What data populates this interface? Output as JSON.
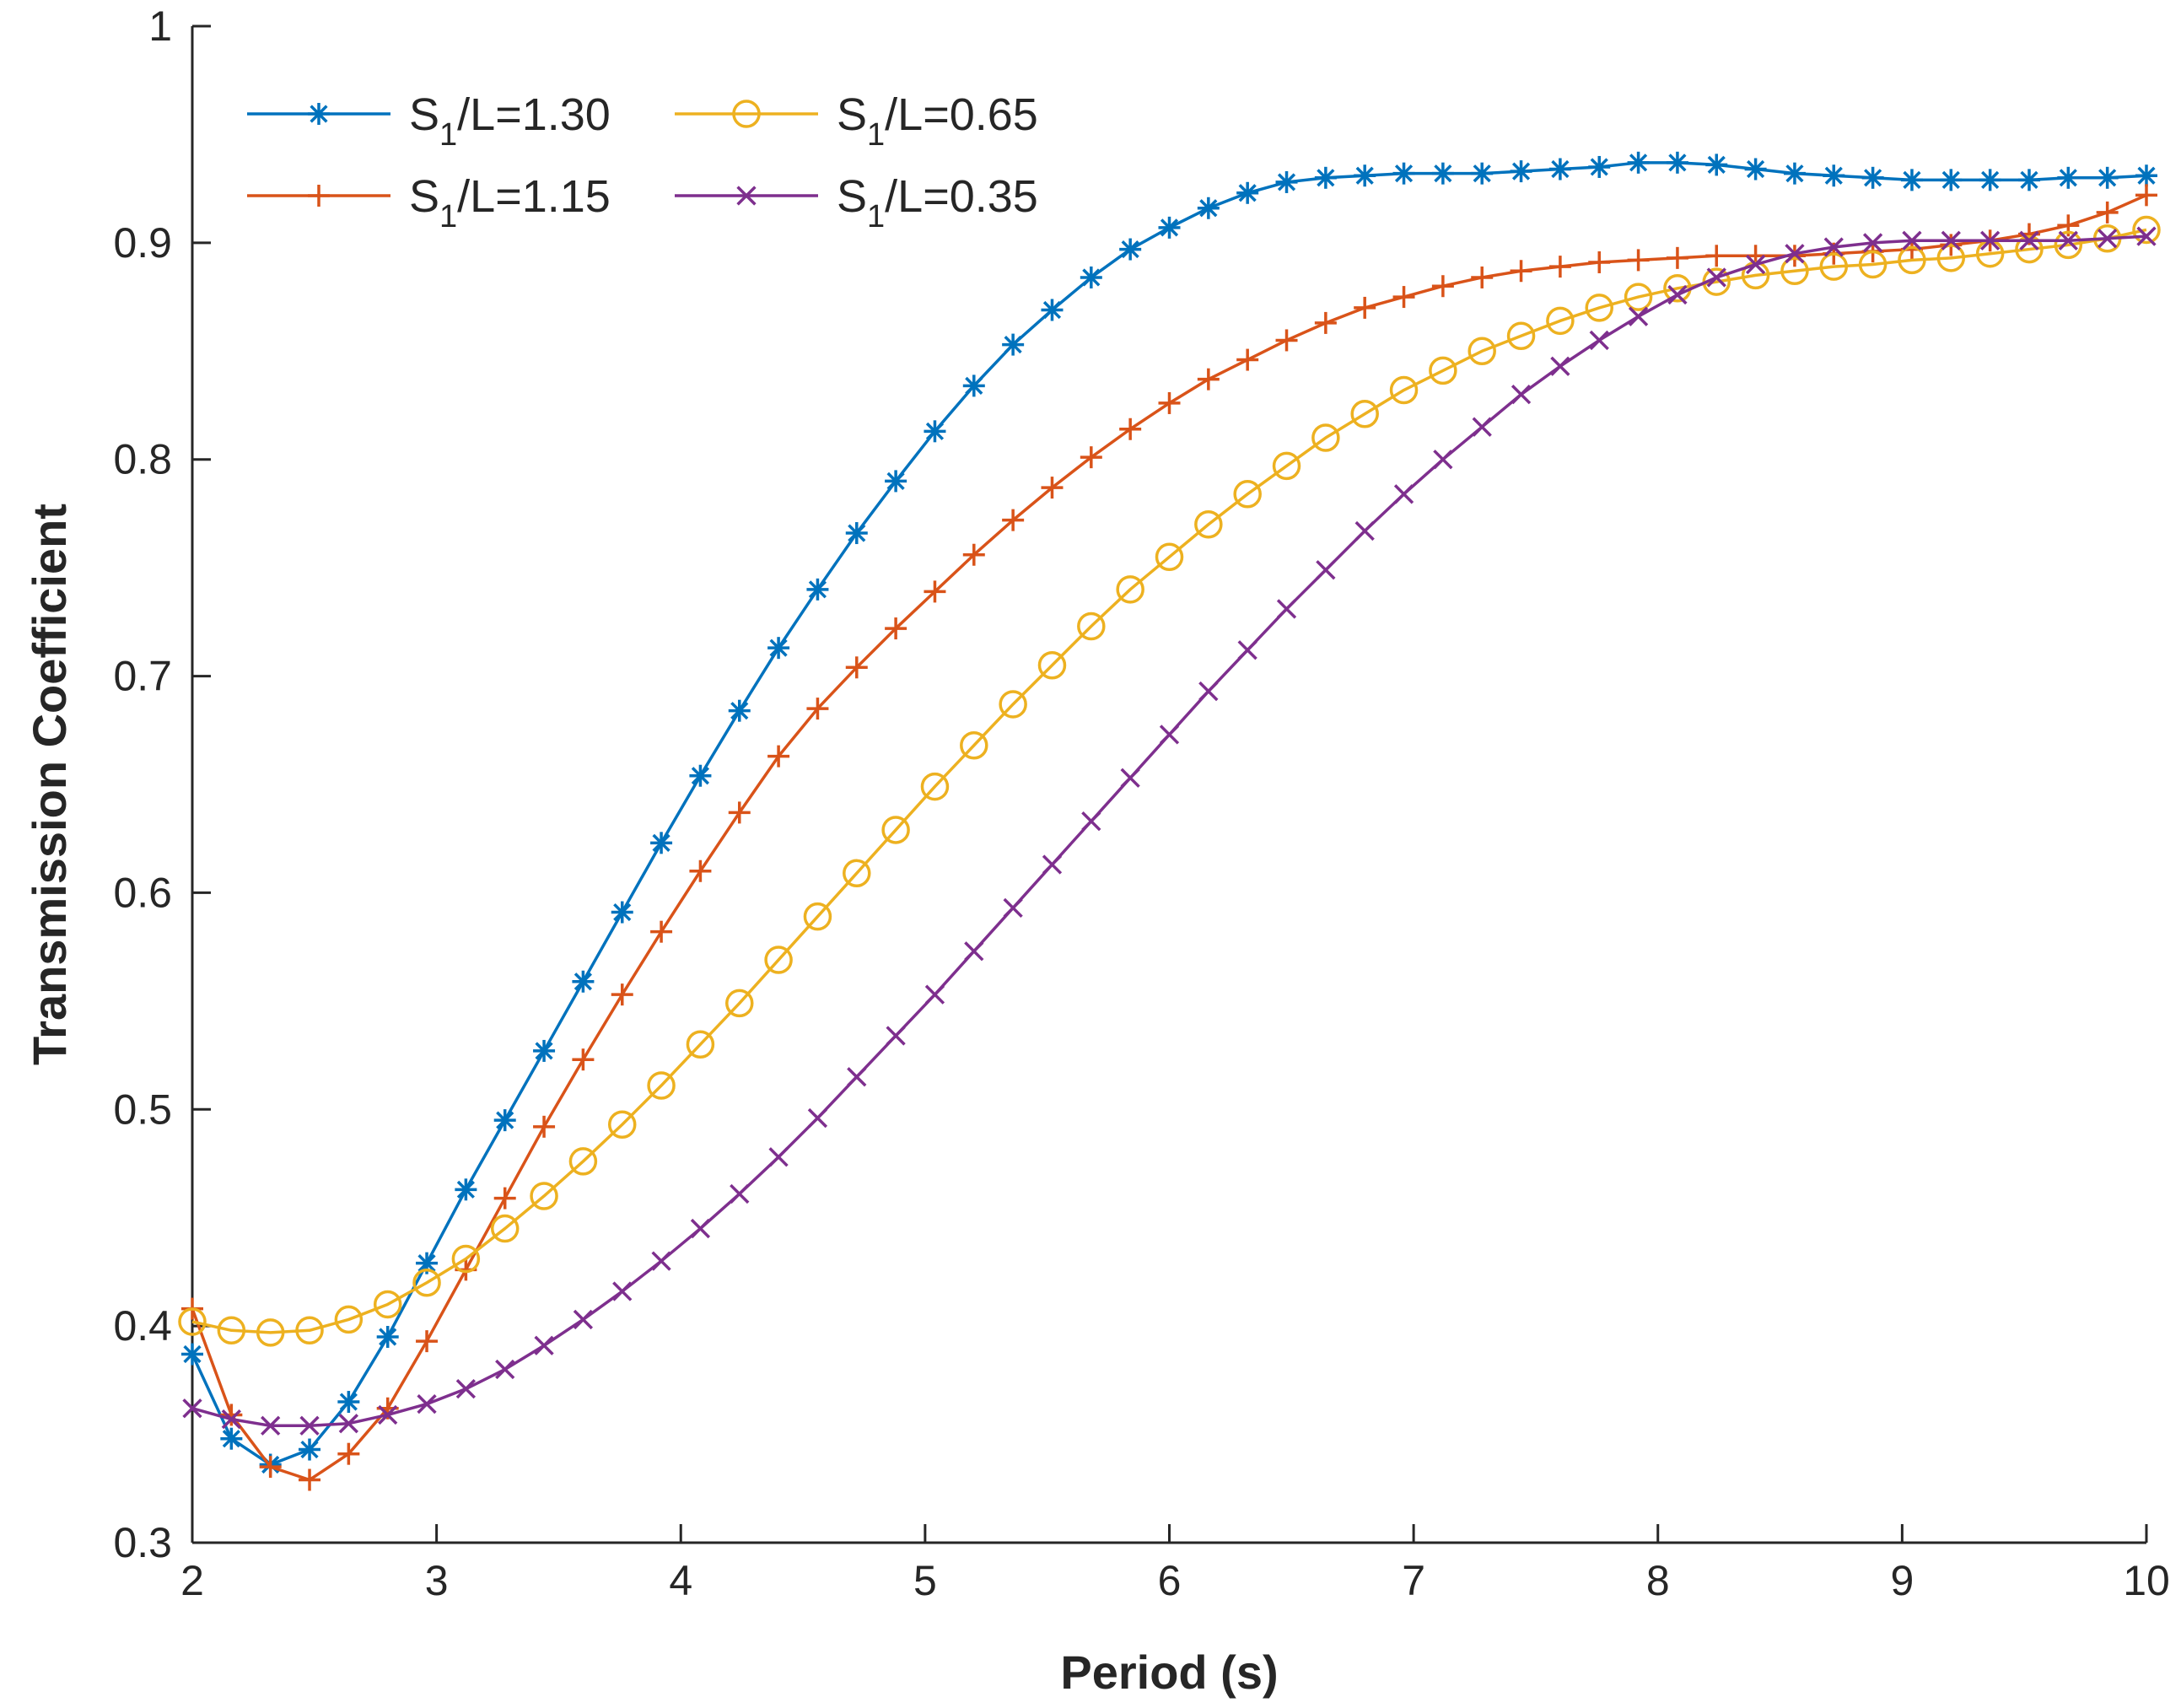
{
  "chart_data": {
    "type": "line",
    "title": "",
    "xlabel": "Period (s)",
    "ylabel": "Transmission Coefficient",
    "xlim": [
      2,
      10
    ],
    "ylim": [
      0.3,
      1
    ],
    "xticks": [
      2,
      3,
      4,
      5,
      6,
      7,
      8,
      9,
      10
    ],
    "yticks": [
      0.3,
      0.4,
      0.5,
      0.6,
      0.7,
      0.8,
      0.9,
      1
    ],
    "xtick_labels": [
      "2",
      "3",
      "4",
      "5",
      "6",
      "7",
      "8",
      "9",
      "10"
    ],
    "ytick_labels": [
      "0.3",
      "0.4",
      "0.5",
      "0.6",
      "0.7",
      "0.8",
      "0.9",
      "1"
    ],
    "grid": false,
    "legend_position": "top-left",
    "x": [
      2.0,
      2.16,
      2.32,
      2.48,
      2.64,
      2.8,
      2.96,
      3.12,
      3.28,
      3.44,
      3.6,
      3.76,
      3.92,
      4.08,
      4.24,
      4.4,
      4.56,
      4.72,
      4.88,
      5.04,
      5.2,
      5.36,
      5.52,
      5.68,
      5.84,
      6.0,
      6.16,
      6.32,
      6.48,
      6.64,
      6.8,
      6.96,
      7.12,
      7.28,
      7.44,
      7.6,
      7.76,
      7.92,
      8.08,
      8.24,
      8.4,
      8.56,
      8.72,
      8.88,
      9.04,
      9.2,
      9.36,
      9.52,
      9.68,
      9.84,
      10.0
    ],
    "series": [
      {
        "name": "S1/L=1.30",
        "legend_main": "S",
        "legend_sub": "1",
        "legend_rest": "/L=1.30",
        "color": "#0072BD",
        "marker": "asterisk",
        "values": [
          0.387,
          0.348,
          0.336,
          0.343,
          0.365,
          0.395,
          0.429,
          0.463,
          0.495,
          0.527,
          0.559,
          0.591,
          0.623,
          0.654,
          0.684,
          0.713,
          0.74,
          0.766,
          0.79,
          0.813,
          0.834,
          0.853,
          0.869,
          0.884,
          0.897,
          0.907,
          0.916,
          0.923,
          0.928,
          0.93,
          0.931,
          0.932,
          0.932,
          0.932,
          0.933,
          0.934,
          0.935,
          0.937,
          0.937,
          0.936,
          0.934,
          0.932,
          0.931,
          0.93,
          0.929,
          0.929,
          0.929,
          0.929,
          0.93,
          0.93,
          0.931
        ]
      },
      {
        "name": "S1/L=1.15",
        "legend_main": "S",
        "legend_sub": "1",
        "legend_rest": "/L=1.15",
        "color": "#D95319",
        "marker": "plus",
        "values": [
          0.408,
          0.359,
          0.335,
          0.329,
          0.341,
          0.362,
          0.393,
          0.426,
          0.459,
          0.492,
          0.523,
          0.553,
          0.582,
          0.61,
          0.637,
          0.663,
          0.685,
          0.704,
          0.722,
          0.739,
          0.756,
          0.772,
          0.787,
          0.801,
          0.814,
          0.826,
          0.837,
          0.846,
          0.855,
          0.863,
          0.87,
          0.875,
          0.88,
          0.884,
          0.887,
          0.889,
          0.891,
          0.892,
          0.893,
          0.894,
          0.894,
          0.894,
          0.895,
          0.896,
          0.897,
          0.899,
          0.901,
          0.904,
          0.908,
          0.914,
          0.922
        ]
      },
      {
        "name": "S1/L=0.65",
        "legend_main": "S",
        "legend_sub": "1",
        "legend_rest": "/L=0.65",
        "color": "#EDB120",
        "marker": "circle",
        "values": [
          0.402,
          0.398,
          0.397,
          0.398,
          0.403,
          0.41,
          0.42,
          0.431,
          0.445,
          0.46,
          0.476,
          0.493,
          0.511,
          0.53,
          0.549,
          0.569,
          0.589,
          0.609,
          0.629,
          0.649,
          0.668,
          0.687,
          0.705,
          0.723,
          0.74,
          0.755,
          0.77,
          0.784,
          0.797,
          0.81,
          0.821,
          0.832,
          0.841,
          0.85,
          0.857,
          0.864,
          0.87,
          0.875,
          0.879,
          0.882,
          0.885,
          0.887,
          0.889,
          0.89,
          0.892,
          0.893,
          0.895,
          0.897,
          0.899,
          0.902,
          0.906
        ]
      },
      {
        "name": "S1/L=0.35",
        "legend_main": "S",
        "legend_sub": "1",
        "legend_rest": "/L=0.35",
        "color": "#7E2F8E",
        "marker": "x",
        "values": [
          0.362,
          0.357,
          0.354,
          0.354,
          0.355,
          0.359,
          0.364,
          0.371,
          0.38,
          0.391,
          0.403,
          0.416,
          0.43,
          0.445,
          0.461,
          0.478,
          0.496,
          0.515,
          0.534,
          0.553,
          0.573,
          0.593,
          0.613,
          0.633,
          0.653,
          0.673,
          0.693,
          0.712,
          0.731,
          0.749,
          0.767,
          0.784,
          0.8,
          0.815,
          0.83,
          0.843,
          0.855,
          0.866,
          0.876,
          0.884,
          0.89,
          0.895,
          0.898,
          0.9,
          0.901,
          0.901,
          0.901,
          0.901,
          0.901,
          0.902,
          0.903
        ]
      }
    ]
  }
}
